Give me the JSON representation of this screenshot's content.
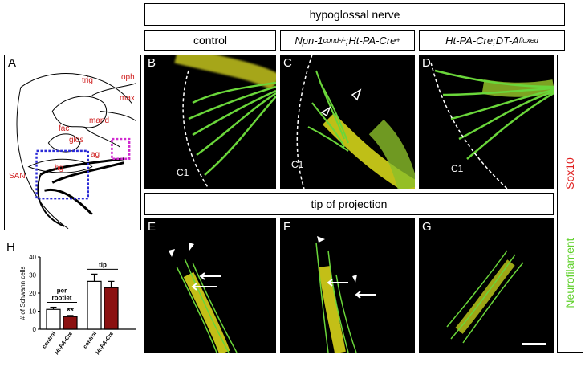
{
  "headers": {
    "hypoglossal": "hypoglossal nerve",
    "control": "control",
    "npn_prefix": "Npn-1",
    "npn_sup1": "cond-/-",
    "npn_mid": ";Ht-PA-Cre",
    "npn_sup2": "+",
    "ht_prefix": "Ht-PA-Cre;DT-A",
    "ht_sup": "floxed",
    "tip": "tip of projection"
  },
  "side_labels": {
    "sox10": "Sox10",
    "neurofilament": "Neurofilament"
  },
  "panels": {
    "A": "A",
    "B": "B",
    "C": "C",
    "D": "D",
    "E": "E",
    "F": "F",
    "G": "G",
    "H": "H",
    "c1": "C1"
  },
  "schematic_labels": {
    "oph": "oph",
    "trig": "trig",
    "max": "max",
    "mand": "mand",
    "fac": "fac",
    "glos": "glos",
    "SAN": "SAN",
    "ag": "ag",
    "hg": "hg"
  },
  "colors": {
    "green": "#5fd12a",
    "yellow": "#e8e21a",
    "red": "#e02020",
    "dark_red": "#8b1010",
    "blue_box": "#2b2bd6",
    "magenta_box": "#d02ad0"
  },
  "chart_data": {
    "type": "bar",
    "ylabel": "# of Schwann cells",
    "ylim": [
      0,
      40
    ],
    "yticks": [
      0,
      10,
      20,
      30,
      40
    ],
    "groups": [
      {
        "label": "per rootlet",
        "bars": [
          {
            "category": "control",
            "value": 11,
            "error": 1.2,
            "color": "#ffffff"
          },
          {
            "category": "Ht-PA-Cre",
            "value": 7,
            "error": 0.6,
            "color": "#8b1010",
            "annotation": "**"
          }
        ]
      },
      {
        "label": "tip",
        "bars": [
          {
            "category": "control",
            "value": 26.5,
            "error": 4,
            "color": "#ffffff"
          },
          {
            "category": "Ht-PA-Cre",
            "value": 23,
            "error": 3.5,
            "color": "#8b1010"
          }
        ]
      }
    ]
  }
}
